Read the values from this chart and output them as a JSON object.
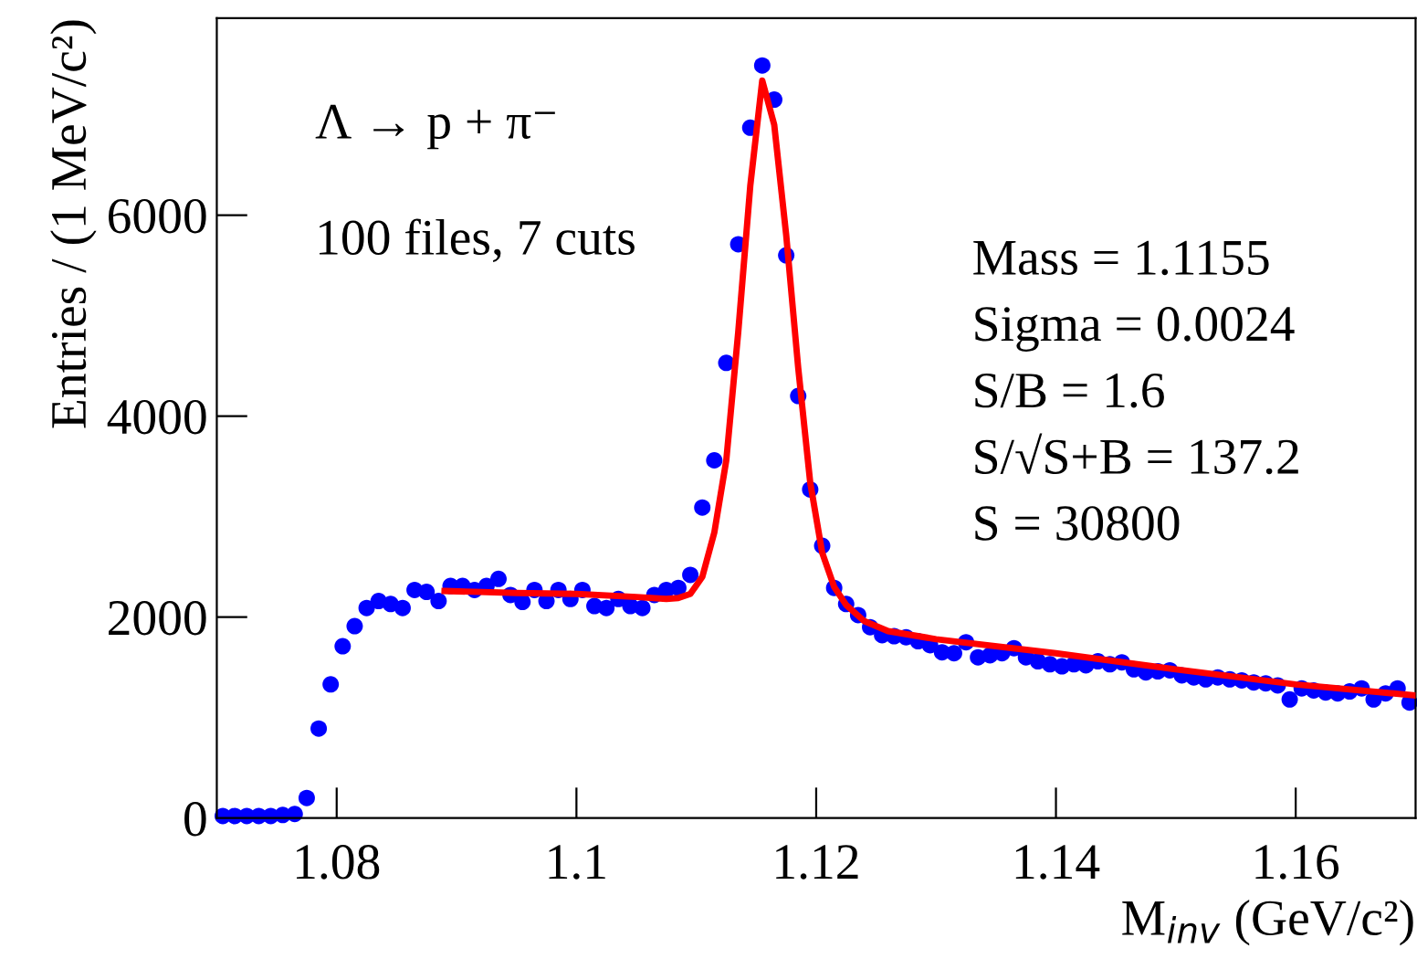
{
  "chart_data": {
    "type": "scatter",
    "xlabel": "M$_{inv}$ (GeV/c²)",
    "ylabel": "Entries / (1 MeV/c²)",
    "xlim": [
      1.07,
      1.17
    ],
    "xticks": [
      1.08,
      1.1,
      1.12,
      1.14,
      1.16
    ],
    "ylim": [
      0,
      7960
    ],
    "yticks": [
      0,
      2000,
      4000,
      6000
    ],
    "grid": false,
    "legend": false,
    "annotations": [
      "Λ → p + π⁻",
      "100 files, 7 cuts",
      "Mass = 1.1155",
      "Sigma = 0.0024",
      "S/B = 1.6",
      "S/√S+B = 137.2",
      "S = 30800"
    ],
    "series": [
      {
        "color": "#0000ff",
        "marker": "circle",
        "x": [
          1.0705,
          1.0715,
          1.0725,
          1.0735,
          1.0745,
          1.0755,
          1.0765,
          1.0775,
          1.0785,
          1.0795,
          1.0805,
          1.0815,
          1.0825,
          1.0835,
          1.0845,
          1.0855,
          1.0865,
          1.0875,
          1.0885,
          1.0895,
          1.0905,
          1.0915,
          1.0925,
          1.0935,
          1.0945,
          1.0955,
          1.0965,
          1.0975,
          1.0985,
          1.0995,
          1.1005,
          1.1015,
          1.1025,
          1.1035,
          1.1045,
          1.1055,
          1.1065,
          1.1075,
          1.1085,
          1.1095,
          1.1105,
          1.1115,
          1.1125,
          1.1135,
          1.1145,
          1.1155,
          1.1165,
          1.1175,
          1.1185,
          1.1195,
          1.1205,
          1.1215,
          1.1225,
          1.1235,
          1.1245,
          1.1255,
          1.1265,
          1.1275,
          1.1285,
          1.1295,
          1.1305,
          1.1315,
          1.1325,
          1.1335,
          1.1345,
          1.1355,
          1.1365,
          1.1375,
          1.1385,
          1.1395,
          1.1405,
          1.1415,
          1.1425,
          1.1435,
          1.1445,
          1.1455,
          1.1465,
          1.1475,
          1.1485,
          1.1495,
          1.1505,
          1.1515,
          1.1525,
          1.1535,
          1.1545,
          1.1555,
          1.1565,
          1.1575,
          1.1585,
          1.1595,
          1.1605,
          1.1615,
          1.1625,
          1.1635,
          1.1645,
          1.1655,
          1.1665,
          1.1675,
          1.1685,
          1.1695
        ],
        "values": [
          20,
          20,
          20,
          20,
          20,
          30,
          40,
          200,
          890,
          1330,
          1710,
          1910,
          2090,
          2160,
          2130,
          2090,
          2270,
          2250,
          2160,
          2310,
          2310,
          2270,
          2310,
          2380,
          2220,
          2150,
          2270,
          2160,
          2270,
          2180,
          2270,
          2110,
          2090,
          2180,
          2110,
          2090,
          2220,
          2270,
          2290,
          2420,
          3090,
          3560,
          4530,
          5710,
          6870,
          7490,
          7150,
          5600,
          4200,
          3270,
          2710,
          2290,
          2130,
          2020,
          1900,
          1820,
          1810,
          1800,
          1760,
          1720,
          1650,
          1640,
          1750,
          1600,
          1620,
          1640,
          1690,
          1600,
          1560,
          1530,
          1510,
          1530,
          1520,
          1560,
          1530,
          1550,
          1480,
          1450,
          1460,
          1470,
          1420,
          1400,
          1380,
          1400,
          1380,
          1370,
          1350,
          1340,
          1320,
          1180,
          1290,
          1270,
          1250,
          1240,
          1260,
          1290,
          1180,
          1240,
          1290,
          1150
        ]
      },
      {
        "type": "line",
        "color": "#ff0000",
        "marker": "none",
        "x": [
          1.089,
          1.095,
          1.1,
          1.105,
          1.1075,
          1.1085,
          1.1095,
          1.1105,
          1.1115,
          1.1125,
          1.1135,
          1.1145,
          1.1155,
          1.1165,
          1.1175,
          1.1185,
          1.1195,
          1.1205,
          1.1215,
          1.1225,
          1.124,
          1.126,
          1.13,
          1.14,
          1.15,
          1.16,
          1.17
        ],
        "values": [
          2260,
          2240,
          2230,
          2200,
          2180,
          2190,
          2230,
          2400,
          2840,
          3560,
          4840,
          6290,
          7340,
          6900,
          5800,
          4480,
          3340,
          2640,
          2300,
          2120,
          1960,
          1860,
          1780,
          1640,
          1480,
          1330,
          1220
        ]
      }
    ]
  }
}
